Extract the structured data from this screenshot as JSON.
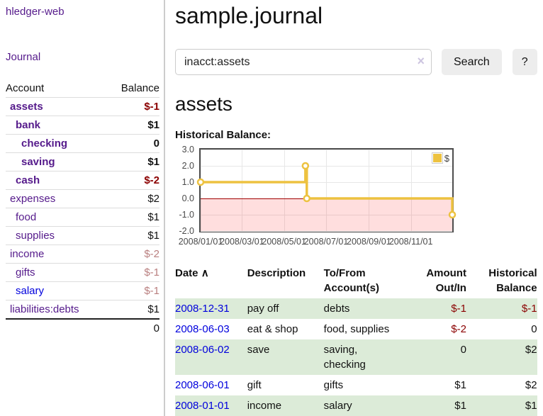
{
  "colors": {
    "link_purple": "#551a8b",
    "link_blue": "#0000dd",
    "negative": "#8b0000",
    "negative_dim": "#b97f7f",
    "row_stripe_green": "#dcebd8",
    "chart_line_gold": "#edc240",
    "chart_zero_line": "#a00000",
    "chart_negative_fill": "rgba(255,0,0,0.13)",
    "chart_grid": "#e7e7e7",
    "chart_border": "#4d4d4d"
  },
  "sidebar": {
    "brand": "hledger-web",
    "nav": [
      {
        "label": "Journal"
      }
    ],
    "accounts": {
      "headers": [
        "Account",
        "Balance"
      ],
      "rows": [
        {
          "name": "assets",
          "balance": "$-1",
          "indent": 1,
          "bold": true,
          "color": "purple"
        },
        {
          "name": "bank",
          "balance": "$1",
          "indent": 2,
          "bold": true,
          "color": "purple"
        },
        {
          "name": "checking",
          "balance": "0",
          "indent": 3,
          "bold": true,
          "color": "purple"
        },
        {
          "name": "saving",
          "balance": "$1",
          "indent": 3,
          "bold": true,
          "color": "purple"
        },
        {
          "name": "cash",
          "balance": "$-2",
          "indent": 2,
          "bold": true,
          "color": "purple"
        },
        {
          "name": "expenses",
          "balance": "$2",
          "indent": 1,
          "bold": false,
          "color": "purple"
        },
        {
          "name": "food",
          "balance": "$1",
          "indent": 2,
          "bold": false,
          "color": "purple"
        },
        {
          "name": "supplies",
          "balance": "$1",
          "indent": 2,
          "bold": false,
          "color": "purple"
        },
        {
          "name": "income",
          "balance": "$-2",
          "indent": 1,
          "bold": false,
          "color": "purple"
        },
        {
          "name": "gifts",
          "balance": "$-1",
          "indent": 2,
          "bold": false,
          "color": "purple"
        },
        {
          "name": "salary",
          "balance": "$-1",
          "indent": 2,
          "bold": false,
          "color": "blue"
        },
        {
          "name": "liabilities:debts",
          "balance": "$1",
          "indent": 1,
          "bold": false,
          "color": "purple"
        }
      ],
      "total": "0"
    }
  },
  "header": {
    "title": "sample.journal"
  },
  "search": {
    "value": "inacct:assets",
    "clear_icon": "×",
    "button_label": "Search",
    "help_label": "?"
  },
  "account_page": {
    "title": "assets",
    "chart_heading": "Historical Balance:"
  },
  "chart_data": {
    "type": "line",
    "step": true,
    "title": "Historical Balance:",
    "series": [
      {
        "name": "$",
        "points": [
          {
            "date": "2008-01-01",
            "value": 1.0
          },
          {
            "date": "2008-06-01",
            "value": 2.0
          },
          {
            "date": "2008-06-03",
            "value": 0.0
          },
          {
            "date": "2008-12-31",
            "value": -1.0
          }
        ]
      }
    ],
    "x_range": [
      "2008-01-01",
      "2008-12-31"
    ],
    "ylim": [
      -2.0,
      3.0
    ],
    "y_ticks": [
      "3.0",
      "2.0",
      "1.0",
      "0.0",
      "-1.0",
      "-2.0"
    ],
    "x_ticks": [
      "2008/01/01",
      "2008/03/01",
      "2008/05/01",
      "2008/07/01",
      "2008/09/01",
      "2008/11/01"
    ],
    "grid": true,
    "legend": {
      "label": "$",
      "position": "top-right"
    },
    "negative_region_shaded": true
  },
  "register": {
    "sort_icon": "∧",
    "headers": [
      "Date",
      "Description",
      "To/From Account(s)",
      "Amount Out/In",
      "Historical Balance"
    ],
    "rows": [
      {
        "date": "2008-12-31",
        "description": "pay off",
        "accounts": "debts",
        "amount": "$-1",
        "balance": "$-1"
      },
      {
        "date": "2008-06-03",
        "description": "eat & shop",
        "accounts": "food, supplies",
        "amount": "$-2",
        "balance": "0"
      },
      {
        "date": "2008-06-02",
        "description": "save",
        "accounts": "saving, checking",
        "amount": "0",
        "balance": "$2"
      },
      {
        "date": "2008-06-01",
        "description": "gift",
        "accounts": "gifts",
        "amount": "$1",
        "balance": "$2"
      },
      {
        "date": "2008-01-01",
        "description": "income",
        "accounts": "salary",
        "amount": "$1",
        "balance": "$1"
      }
    ]
  }
}
